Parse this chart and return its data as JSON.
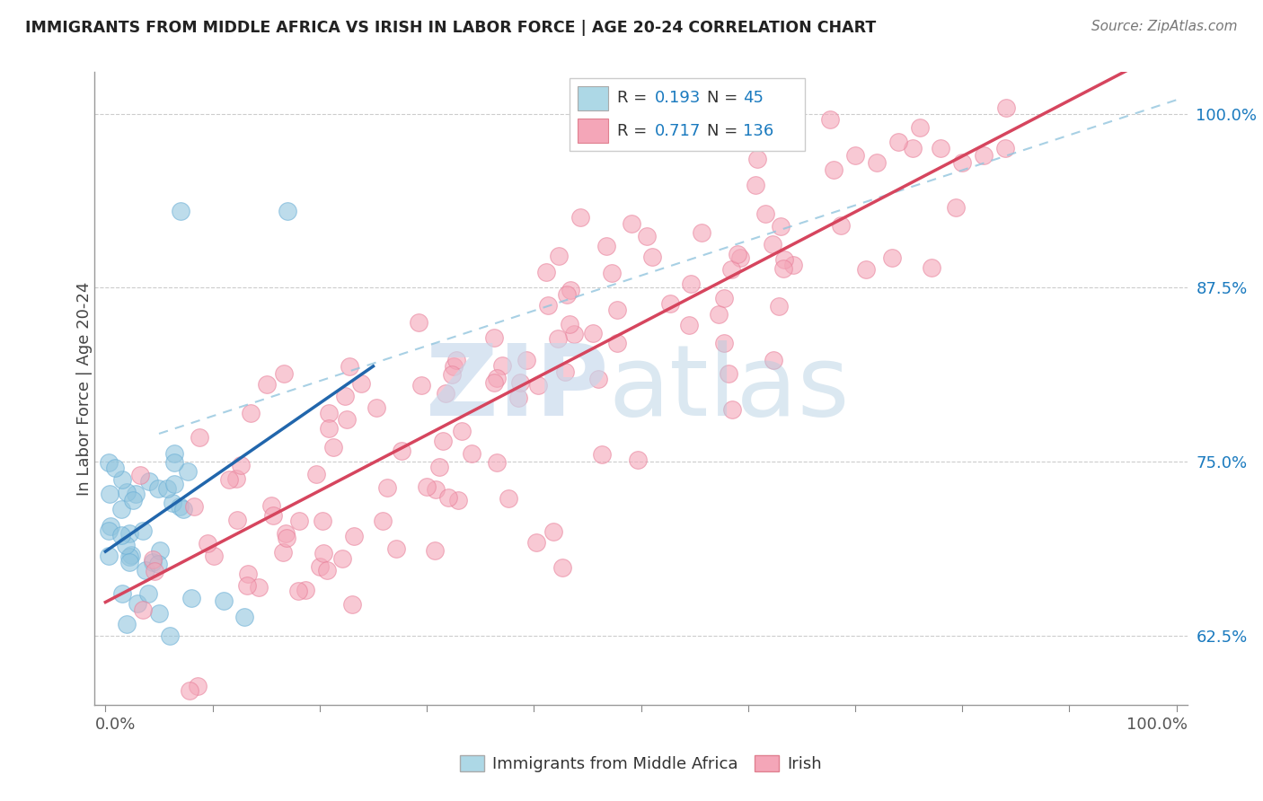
{
  "title": "IMMIGRANTS FROM MIDDLE AFRICA VS IRISH IN LABOR FORCE | AGE 20-24 CORRELATION CHART",
  "source": "Source: ZipAtlas.com",
  "ylabel": "In Labor Force | Age 20-24",
  "ytick_values": [
    0.625,
    0.75,
    0.875,
    1.0
  ],
  "ytick_labels": [
    "62.5%",
    "75.0%",
    "87.5%",
    "100.0%"
  ],
  "xlim": [
    0.0,
    1.0
  ],
  "ylim": [
    0.575,
    1.03
  ],
  "blue_color": "#92c5de",
  "pink_color": "#f4a6b8",
  "blue_line_color": "#2166ac",
  "pink_line_color": "#d6455e",
  "dashed_line_color": "#92c5de",
  "grid_color": "#cccccc",
  "r_value_color": "#1a7abf",
  "n_value_color": "#1a7abf",
  "watermark_zip_color": "#c5d8ec",
  "watermark_atlas_color": "#b0cce0",
  "legend_r1": "R = 0.193",
  "legend_n1": "N =  45",
  "legend_r2": "R = 0.717",
  "legend_n2": "N = 136"
}
